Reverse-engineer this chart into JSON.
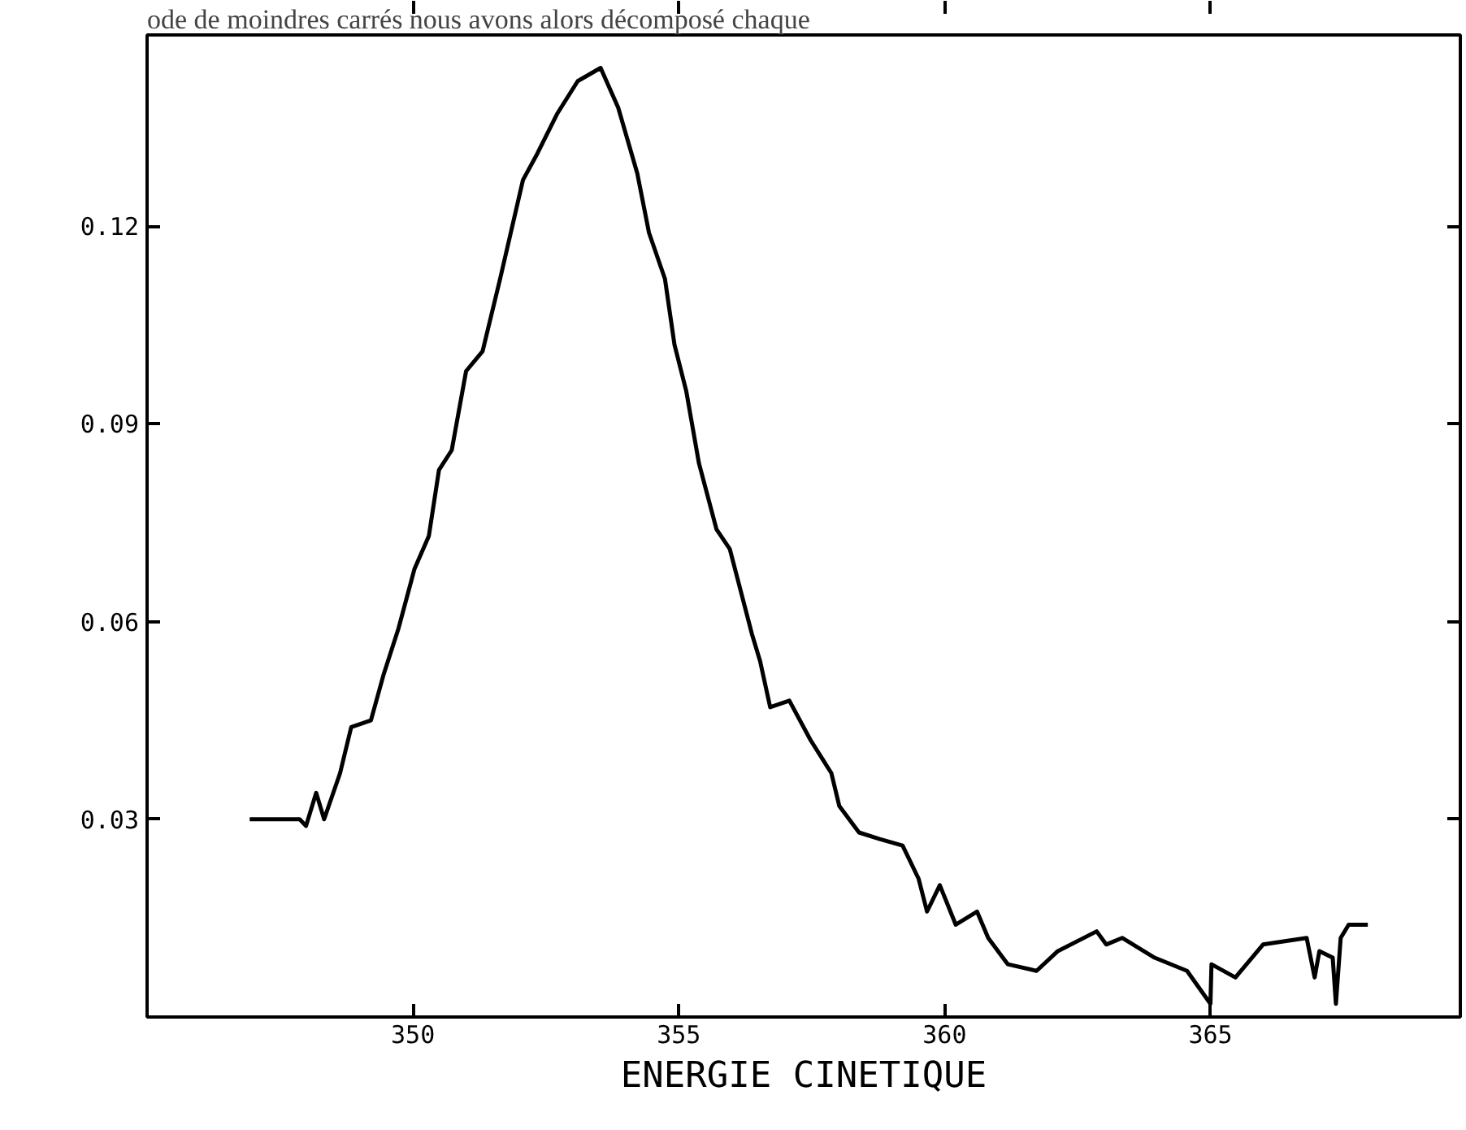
{
  "chart_data": {
    "type": "line",
    "xlabel": "ENERGIE CINETIQUE",
    "annotations": [
      "ode de moindres carrés nous avons alors décomposé chaque"
    ],
    "x": [
      346.93,
      347.87,
      347.99,
      348.18,
      348.33,
      348.63,
      348.84,
      349.21,
      349.45,
      349.73,
      350.03,
      350.3,
      350.49,
      350.73,
      351.0,
      351.31,
      351.64,
      352.07,
      352.34,
      352.71,
      353.1,
      353.53,
      353.86,
      354.22,
      354.44,
      354.74,
      354.92,
      355.14,
      355.38,
      355.71,
      355.96,
      356.38,
      356.53,
      356.72,
      357.08,
      357.48,
      357.87,
      358.02,
      358.39,
      358.78,
      359.21,
      359.51,
      359.67,
      359.91,
      360.21,
      360.61,
      360.82,
      361.19,
      361.73,
      362.13,
      362.86,
      363.04,
      363.34,
      363.95,
      364.56,
      365.0,
      365.02,
      365.47,
      365.99,
      366.81,
      366.96,
      367.05,
      367.3,
      367.36,
      367.45,
      367.6,
      367.96
    ],
    "series": [
      {
        "color": "#000000",
        "values": [
          0.03,
          0.03,
          0.029,
          0.034,
          0.03,
          0.037,
          0.044,
          0.045,
          0.052,
          0.059,
          0.068,
          0.073,
          0.083,
          0.086,
          0.098,
          0.101,
          0.112,
          0.127,
          0.131,
          0.137,
          0.142,
          0.144,
          0.138,
          0.128,
          0.119,
          0.112,
          0.102,
          0.095,
          0.084,
          0.074,
          0.071,
          0.058,
          0.054,
          0.047,
          0.048,
          0.042,
          0.037,
          0.032,
          0.028,
          0.027,
          0.026,
          0.021,
          0.016,
          0.02,
          0.014,
          0.016,
          0.012,
          0.008,
          0.007,
          0.01,
          0.013,
          0.011,
          0.012,
          0.009,
          0.007,
          0.002,
          0.008,
          0.006,
          0.011,
          0.012,
          0.006,
          0.01,
          0.009,
          0.002,
          0.012,
          0.014,
          0.014
        ]
      }
    ],
    "xlim": [
      345,
      369.7
    ],
    "ylim": [
      0,
      0.149
    ],
    "xticks": [
      350,
      355,
      360,
      365
    ],
    "yticks": [
      0.03,
      0.06,
      0.09,
      0.12
    ],
    "grid": false,
    "marker": "none",
    "line_style": "solid"
  }
}
